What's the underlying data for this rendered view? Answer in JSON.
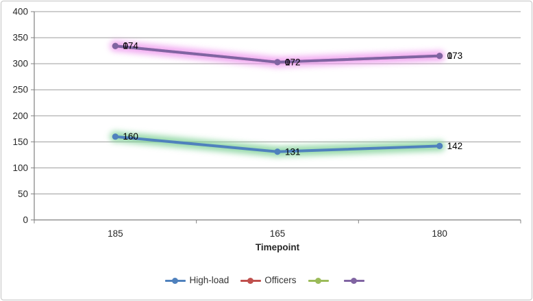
{
  "chart_data": {
    "type": "line",
    "stacked": true,
    "title": "",
    "xlabel": "Timepoint",
    "ylabel": "",
    "categories": [
      "185",
      "165",
      "180"
    ],
    "y_axis": {
      "min": 0,
      "max": 400,
      "step": 50,
      "tick_labels": [
        "0",
        "50",
        "100",
        "150",
        "200",
        "250",
        "300",
        "350",
        "400"
      ],
      "grid": true
    },
    "series": [
      {
        "name": "High-load",
        "color": "#4F81BD",
        "glow_color": "#7FD096",
        "values": [
          160,
          131,
          142
        ],
        "data_labels": [
          "160",
          "131",
          "142"
        ]
      },
      {
        "name": "Officers",
        "color": "#C0504D",
        "glow_color": null,
        "values": [
          174,
          172,
          173
        ],
        "data_labels": [
          "174",
          "172",
          "173"
        ]
      },
      {
        "name": "",
        "color": "#9BBB59",
        "glow_color": null,
        "values": [
          0,
          0,
          0
        ],
        "data_labels": [
          "0",
          "0",
          "0"
        ]
      },
      {
        "name": "",
        "color": "#8064A2",
        "glow_color": "#EE96EE",
        "values": [
          0,
          0,
          0
        ],
        "data_labels": [
          "0",
          "0",
          "0"
        ]
      }
    ],
    "stacked_totals": [
      334,
      303,
      315
    ],
    "legend": {
      "position": "bottom"
    },
    "colors": {
      "gridline": "#9C9C9C",
      "axis": "#808080",
      "axis_text": "#262626",
      "data_label_text": "#000000",
      "border": "#C3C3C3",
      "background": "#FFFFFF"
    }
  }
}
